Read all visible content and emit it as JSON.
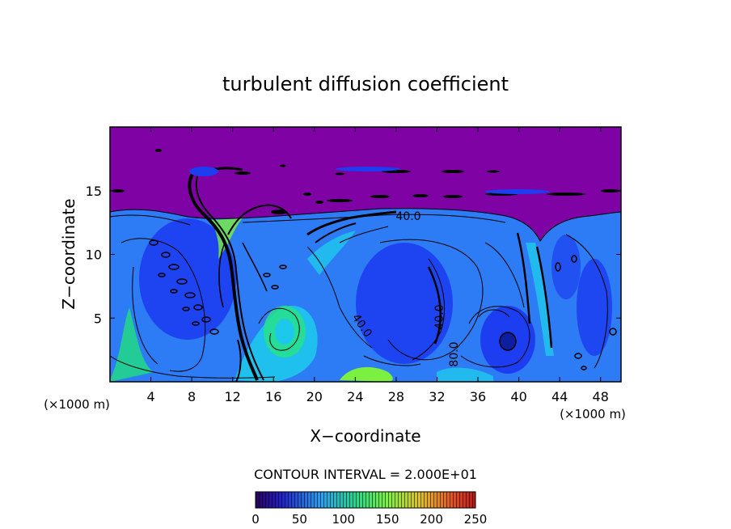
{
  "chart_data": {
    "type": "heatmap",
    "title": "turbulent diffusion coefficient",
    "xlabel": "X−coordinate",
    "ylabel": "Z−coordinate",
    "x_unit_left": "(×1000 m)",
    "x_unit_right": "(×1000 m)",
    "xlim": [
      0,
      50
    ],
    "ylim": [
      0,
      20
    ],
    "xticks": [
      4,
      8,
      12,
      16,
      20,
      24,
      28,
      32,
      36,
      40,
      44,
      48
    ],
    "yticks": [
      5,
      10,
      15
    ],
    "contour_interval_text": "CONTOUR INTERVAL = 2.000E+01",
    "contour_labels": [
      {
        "text": "40.0",
        "x": 29.3,
        "z": 12.8
      },
      {
        "text": "40.0",
        "x": 32.4,
        "z": 5.0
      },
      {
        "text": "80.0",
        "x": 34.6,
        "z": 2.3
      },
      {
        "text": "40.0",
        "x": 24.3,
        "z": 4.2
      }
    ],
    "colorbar": {
      "min": 0,
      "max": 250,
      "ticks": [
        0,
        50,
        100,
        150,
        200,
        250
      ],
      "colors": [
        "#3a0a8a",
        "#1a3ee6",
        "#2aa0ee",
        "#22d48c",
        "#7ef044",
        "#e0c020",
        "#e05020",
        "#c01818"
      ]
    },
    "colors": {
      "upper_layer": "#7f02a4",
      "deep_blue": "#1c3ef0",
      "mid_blue": "#2d7cf5",
      "cyan": "#1ec8ec",
      "green": "#28e08a",
      "lime": "#7cf040"
    }
  }
}
